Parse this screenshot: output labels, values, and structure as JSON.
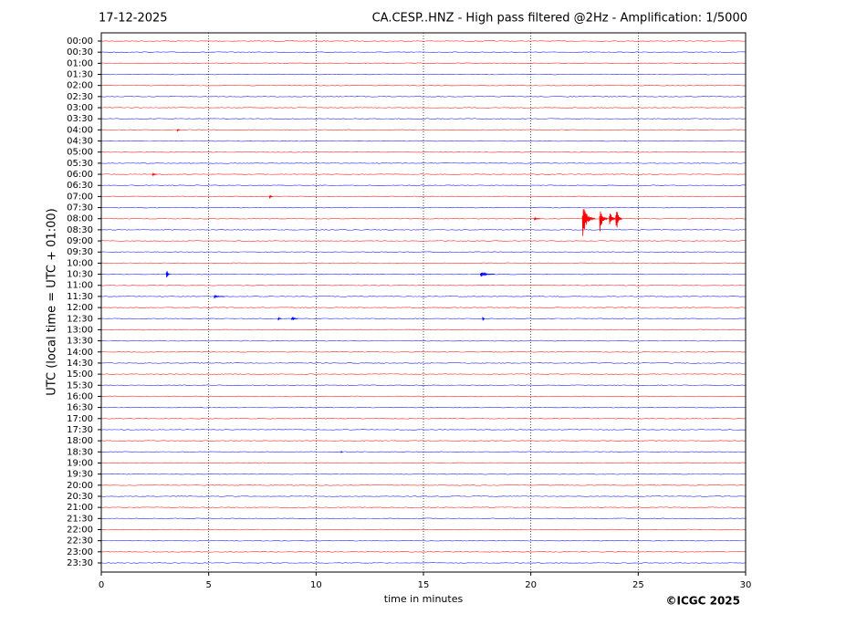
{
  "chart_data": {
    "type": "helicorder",
    "title_left": "17-12-2025",
    "title": "CA.CESP..HNZ - High pass filtered @2Hz - Amplification: 1/5000",
    "y_label": "UTC (local time = UTC + 01:00)",
    "x_label": "time in minutes",
    "credit": "©ICGC 2025",
    "rows": [
      "00:00",
      "00:30",
      "01:00",
      "01:30",
      "02:00",
      "02:30",
      "03:00",
      "03:30",
      "04:00",
      "04:30",
      "05:00",
      "05:30",
      "06:00",
      "06:30",
      "07:00",
      "07:30",
      "08:00",
      "08:30",
      "09:00",
      "09:30",
      "10:00",
      "10:30",
      "11:00",
      "11:30",
      "12:00",
      "12:30",
      "13:00",
      "13:30",
      "14:00",
      "14:30",
      "15:00",
      "15:30",
      "16:00",
      "16:30",
      "17:00",
      "17:30",
      "18:00",
      "18:30",
      "19:00",
      "19:30",
      "20:00",
      "20:30",
      "21:00",
      "21:30",
      "22:00",
      "22:30",
      "23:00",
      "23:30"
    ],
    "colors": [
      "#ff0000",
      "#0000ff"
    ],
    "xlim": [
      0,
      30
    ],
    "xticks": [
      0,
      5,
      10,
      15,
      20,
      25,
      30
    ],
    "grid": true,
    "bursts": [
      {
        "row": 8,
        "x": 3.6,
        "width": 0.15,
        "amplitude": 0.2
      },
      {
        "row": 12,
        "x": 2.5,
        "width": 0.25,
        "amplitude": 0.2
      },
      {
        "row": 14,
        "x": 7.9,
        "width": 0.15,
        "amplitude": 0.4
      },
      {
        "row": 16,
        "x": 20.3,
        "width": 0.3,
        "amplitude": 0.2
      },
      {
        "row": 16,
        "x": 22.7,
        "width": 0.6,
        "amplitude": 2.0
      },
      {
        "row": 16,
        "x": 23.4,
        "width": 0.4,
        "amplitude": 1.5
      },
      {
        "row": 16,
        "x": 23.8,
        "width": 0.3,
        "amplitude": 1.2
      },
      {
        "row": 16,
        "x": 24.1,
        "width": 0.3,
        "amplitude": 2.0
      },
      {
        "row": 21,
        "x": 3.1,
        "width": 0.15,
        "amplitude": 1.0
      },
      {
        "row": 21,
        "x": 18.0,
        "width": 0.7,
        "amplitude": 0.3
      },
      {
        "row": 23,
        "x": 5.5,
        "width": 0.5,
        "amplitude": 0.15
      },
      {
        "row": 25,
        "x": 8.3,
        "width": 0.15,
        "amplitude": 0.3
      },
      {
        "row": 25,
        "x": 9.0,
        "width": 0.3,
        "amplitude": 0.3
      },
      {
        "row": 25,
        "x": 17.8,
        "width": 0.1,
        "amplitude": 0.8
      },
      {
        "row": 37,
        "x": 11.2,
        "width": 0.1,
        "amplitude": 0.2
      }
    ]
  }
}
